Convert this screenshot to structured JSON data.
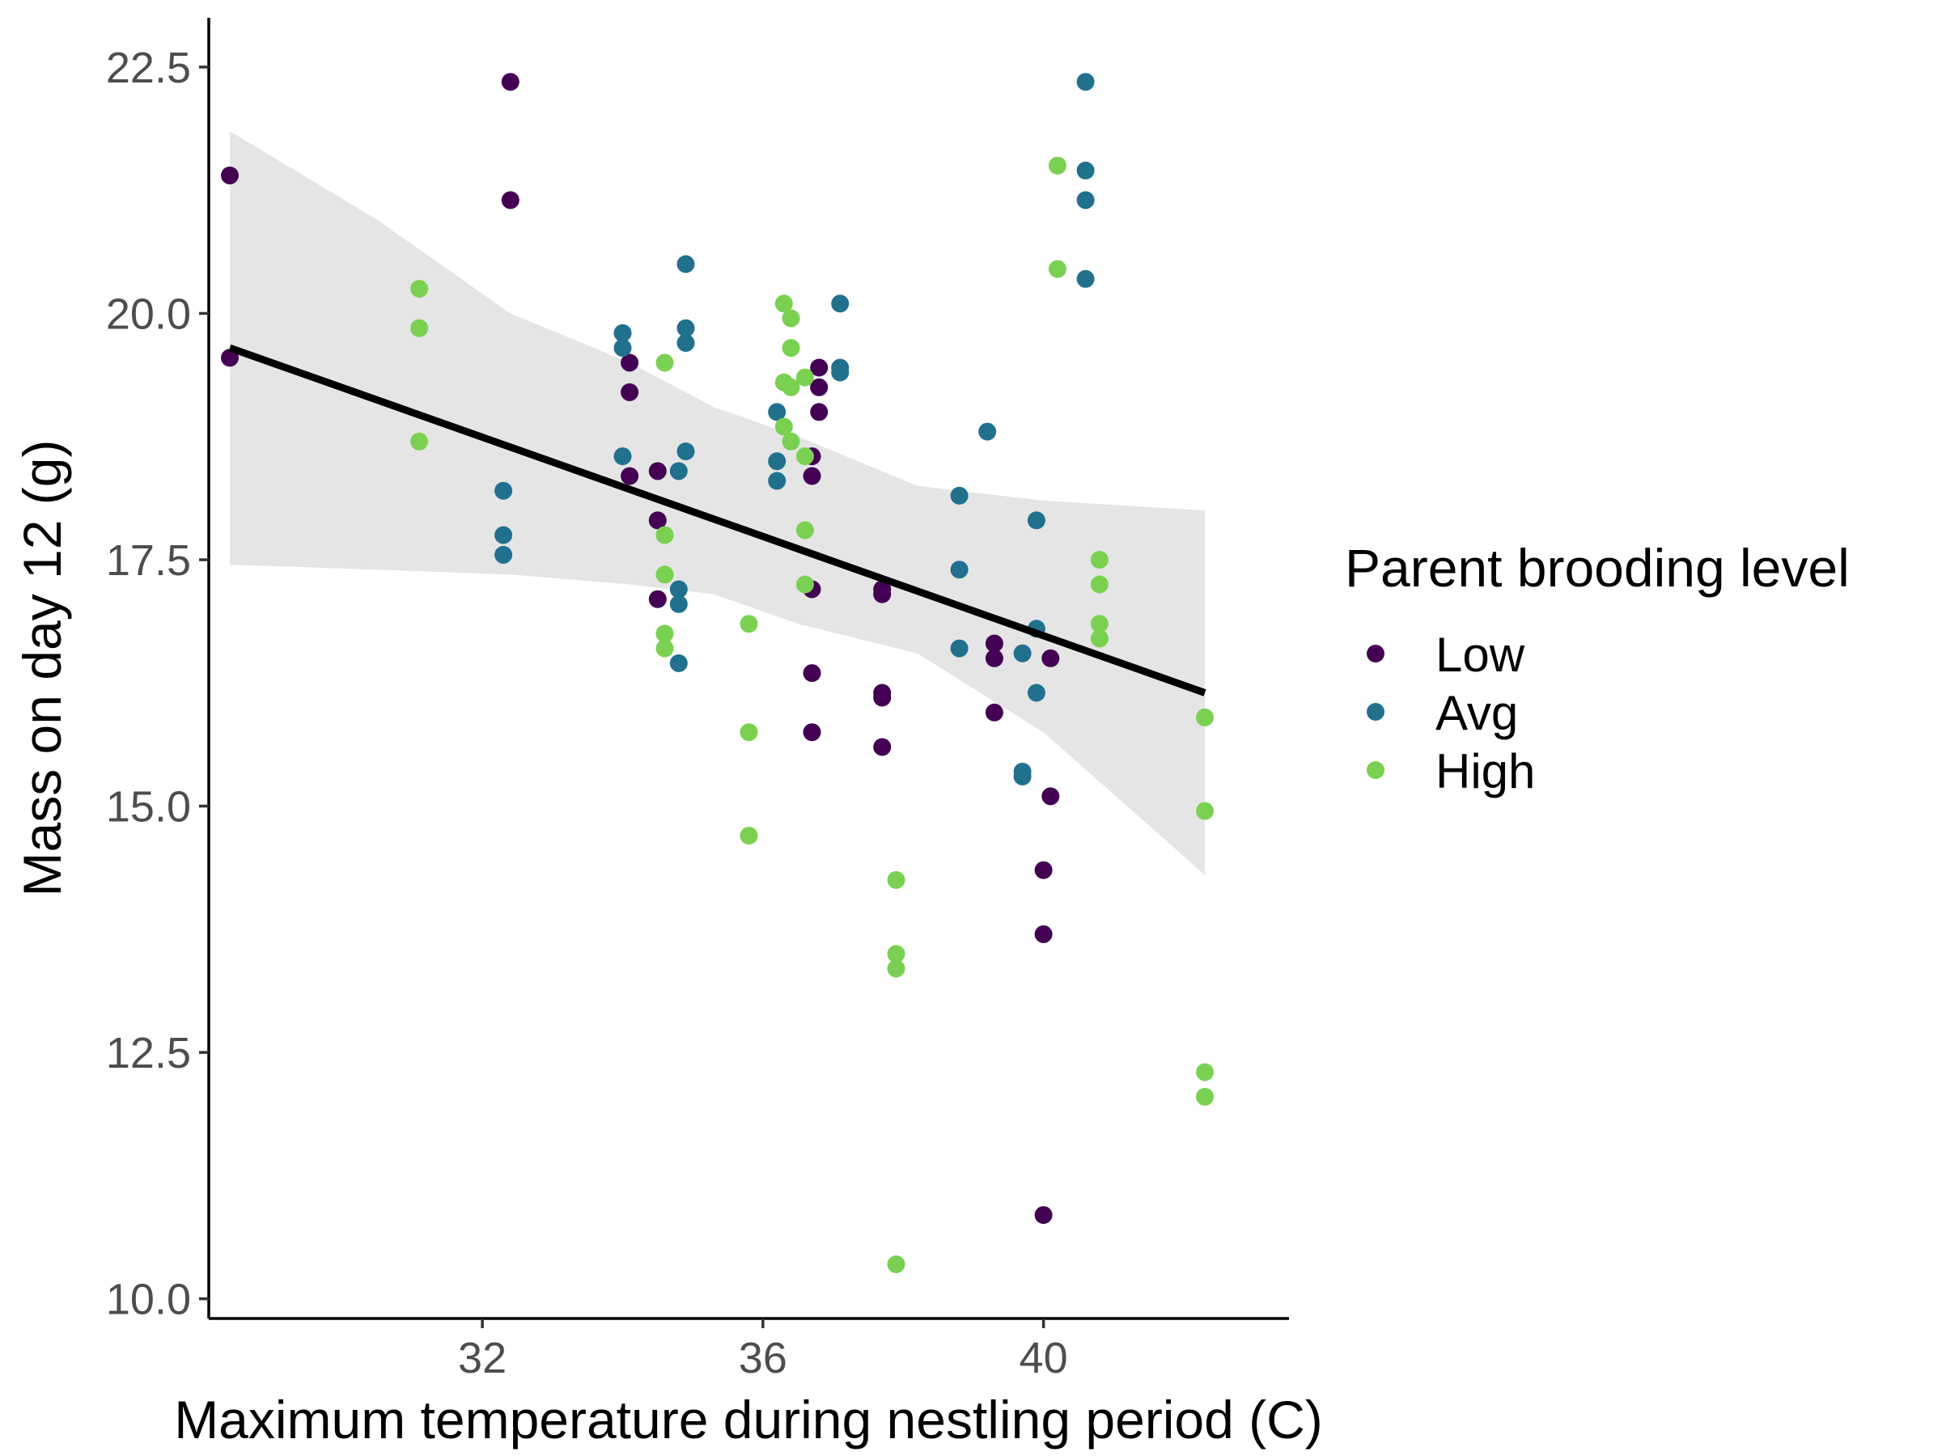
{
  "chart_data": {
    "type": "scatter",
    "xlabel": "Maximum temperature during nestling period (C)",
    "ylabel": "Mass on day 12 (g)",
    "xlim": [
      28.1,
      43.5
    ],
    "ylim": [
      9.8,
      23.0
    ],
    "x_ticks": [
      32,
      36,
      40
    ],
    "x_tick_labels": [
      "32",
      "36",
      "40"
    ],
    "y_ticks": [
      10.0,
      12.5,
      15.0,
      17.5,
      20.0,
      22.5
    ],
    "y_tick_labels": [
      "10.0",
      "12.5",
      "15.0",
      "17.5",
      "20.0",
      "22.5"
    ],
    "grid": false,
    "legend": {
      "title": "Parent brooding level",
      "placement": "right",
      "entries": [
        "Low",
        "Avg",
        "High"
      ]
    },
    "colors": {
      "Low": "#440154",
      "Avg": "#21718e",
      "High": "#7ad151"
    },
    "series": [
      {
        "name": "Low",
        "points": [
          [
            28.4,
            21.4
          ],
          [
            28.4,
            19.55
          ],
          [
            32.4,
            22.35
          ],
          [
            32.4,
            21.15
          ],
          [
            34.1,
            19.5
          ],
          [
            34.1,
            19.2
          ],
          [
            34.1,
            18.35
          ],
          [
            34.5,
            18.4
          ],
          [
            34.5,
            17.9
          ],
          [
            34.5,
            17.1
          ],
          [
            36.8,
            19.45
          ],
          [
            36.8,
            19.25
          ],
          [
            36.8,
            19.0
          ],
          [
            36.7,
            18.55
          ],
          [
            36.7,
            18.35
          ],
          [
            36.7,
            17.2
          ],
          [
            36.7,
            16.35
          ],
          [
            36.7,
            15.75
          ],
          [
            37.7,
            17.2
          ],
          [
            37.7,
            17.15
          ],
          [
            37.7,
            16.15
          ],
          [
            37.7,
            16.1
          ],
          [
            37.7,
            15.6
          ],
          [
            39.3,
            16.65
          ],
          [
            39.3,
            16.5
          ],
          [
            39.3,
            15.95
          ],
          [
            40.1,
            16.5
          ],
          [
            40.1,
            15.1
          ],
          [
            40.0,
            14.35
          ],
          [
            40.0,
            13.7
          ],
          [
            40.0,
            10.85
          ]
        ]
      },
      {
        "name": "Avg",
        "points": [
          [
            32.3,
            18.2
          ],
          [
            32.3,
            17.75
          ],
          [
            32.3,
            17.55
          ],
          [
            34.0,
            19.8
          ],
          [
            34.0,
            19.65
          ],
          [
            34.0,
            18.55
          ],
          [
            34.9,
            20.5
          ],
          [
            34.9,
            19.85
          ],
          [
            34.9,
            19.7
          ],
          [
            34.9,
            18.6
          ],
          [
            34.8,
            18.4
          ],
          [
            34.8,
            17.2
          ],
          [
            34.8,
            17.05
          ],
          [
            34.8,
            16.45
          ],
          [
            36.2,
            19.0
          ],
          [
            36.2,
            18.5
          ],
          [
            36.2,
            18.3
          ],
          [
            37.1,
            20.1
          ],
          [
            37.1,
            19.45
          ],
          [
            37.1,
            19.4
          ],
          [
            38.8,
            18.15
          ],
          [
            38.8,
            17.4
          ],
          [
            38.8,
            16.6
          ],
          [
            39.2,
            18.8
          ],
          [
            39.9,
            17.9
          ],
          [
            39.9,
            16.8
          ],
          [
            39.9,
            16.15
          ],
          [
            39.7,
            16.55
          ],
          [
            39.7,
            15.35
          ],
          [
            39.7,
            15.3
          ],
          [
            40.6,
            22.35
          ],
          [
            40.6,
            21.45
          ],
          [
            40.6,
            21.15
          ],
          [
            40.6,
            20.35
          ]
        ]
      },
      {
        "name": "High",
        "points": [
          [
            31.1,
            20.25
          ],
          [
            31.1,
            19.85
          ],
          [
            31.1,
            18.7
          ],
          [
            34.6,
            19.5
          ],
          [
            34.6,
            17.75
          ],
          [
            34.6,
            17.35
          ],
          [
            34.6,
            16.75
          ],
          [
            34.6,
            16.6
          ],
          [
            35.8,
            16.85
          ],
          [
            35.8,
            15.75
          ],
          [
            35.8,
            14.7
          ],
          [
            36.3,
            20.1
          ],
          [
            36.4,
            19.95
          ],
          [
            36.4,
            19.65
          ],
          [
            36.3,
            19.3
          ],
          [
            36.4,
            19.25
          ],
          [
            36.6,
            19.35
          ],
          [
            36.3,
            18.85
          ],
          [
            36.4,
            18.7
          ],
          [
            36.6,
            18.55
          ],
          [
            36.6,
            17.8
          ],
          [
            36.6,
            17.25
          ],
          [
            37.9,
            14.25
          ],
          [
            37.9,
            13.5
          ],
          [
            37.9,
            13.35
          ],
          [
            37.9,
            10.35
          ],
          [
            40.2,
            21.5
          ],
          [
            40.2,
            20.45
          ],
          [
            40.8,
            17.5
          ],
          [
            40.8,
            17.25
          ],
          [
            40.8,
            16.85
          ],
          [
            40.8,
            16.7
          ],
          [
            42.3,
            15.9
          ],
          [
            42.3,
            14.95
          ],
          [
            42.3,
            12.3
          ],
          [
            42.3,
            12.05
          ]
        ]
      }
    ],
    "trend_line": {
      "x": [
        28.4,
        42.3
      ],
      "y": [
        19.65,
        16.15
      ]
    },
    "confidence_band": {
      "x": [
        28.4,
        30.5,
        32.4,
        34.1,
        35.3,
        36.5,
        38.2,
        40.0,
        42.3
      ],
      "upper": [
        21.85,
        20.95,
        20.0,
        19.5,
        19.05,
        18.75,
        18.25,
        18.1,
        18.0
      ],
      "lower": [
        17.45,
        17.4,
        17.35,
        17.25,
        17.15,
        16.85,
        16.55,
        15.75,
        14.3
      ]
    }
  }
}
